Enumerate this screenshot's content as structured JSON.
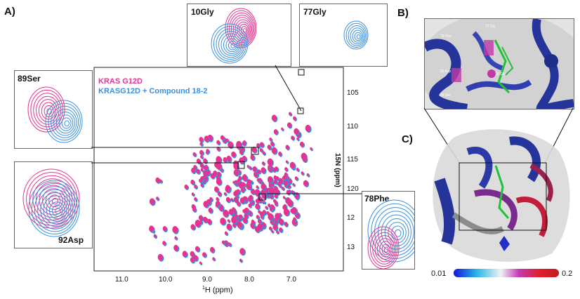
{
  "figure": {
    "panels": {
      "a": "A)",
      "b": "B)",
      "c": "C)"
    },
    "colors": {
      "kras": "#e6338f",
      "compound": "#3a8fe0",
      "structure_blue": "#24349a",
      "structure_red": "#c21d3a",
      "ligand_green": "#22c13a"
    },
    "legend": {
      "series1": "KRAS G12D",
      "series2": "KRASG12D + Compound 18-2"
    },
    "axes": {
      "xlabel_sup": "1",
      "xlabel": "H (ppm)",
      "ylabel": "15N (ppm)",
      "x_ticks": [
        "11.0",
        "10.0",
        "9.0",
        "8.0",
        "7.0"
      ],
      "y_ticks": [
        "105",
        "110",
        "115",
        "120",
        "12",
        "13"
      ]
    },
    "insets": {
      "ser89": "89Ser",
      "asp92": "92Asp",
      "gly10": "10Gly",
      "gly77": "77Gly",
      "phe78": "78Phe"
    },
    "structure_labels": {
      "gly77": "77 Gly",
      "phe78": "78 Phe",
      "asp92": "92 Asp",
      "gly10": "10 Gly",
      "ser89": "89 Ser"
    },
    "colorbar": {
      "min": "0.01",
      "max": "0.2"
    }
  }
}
